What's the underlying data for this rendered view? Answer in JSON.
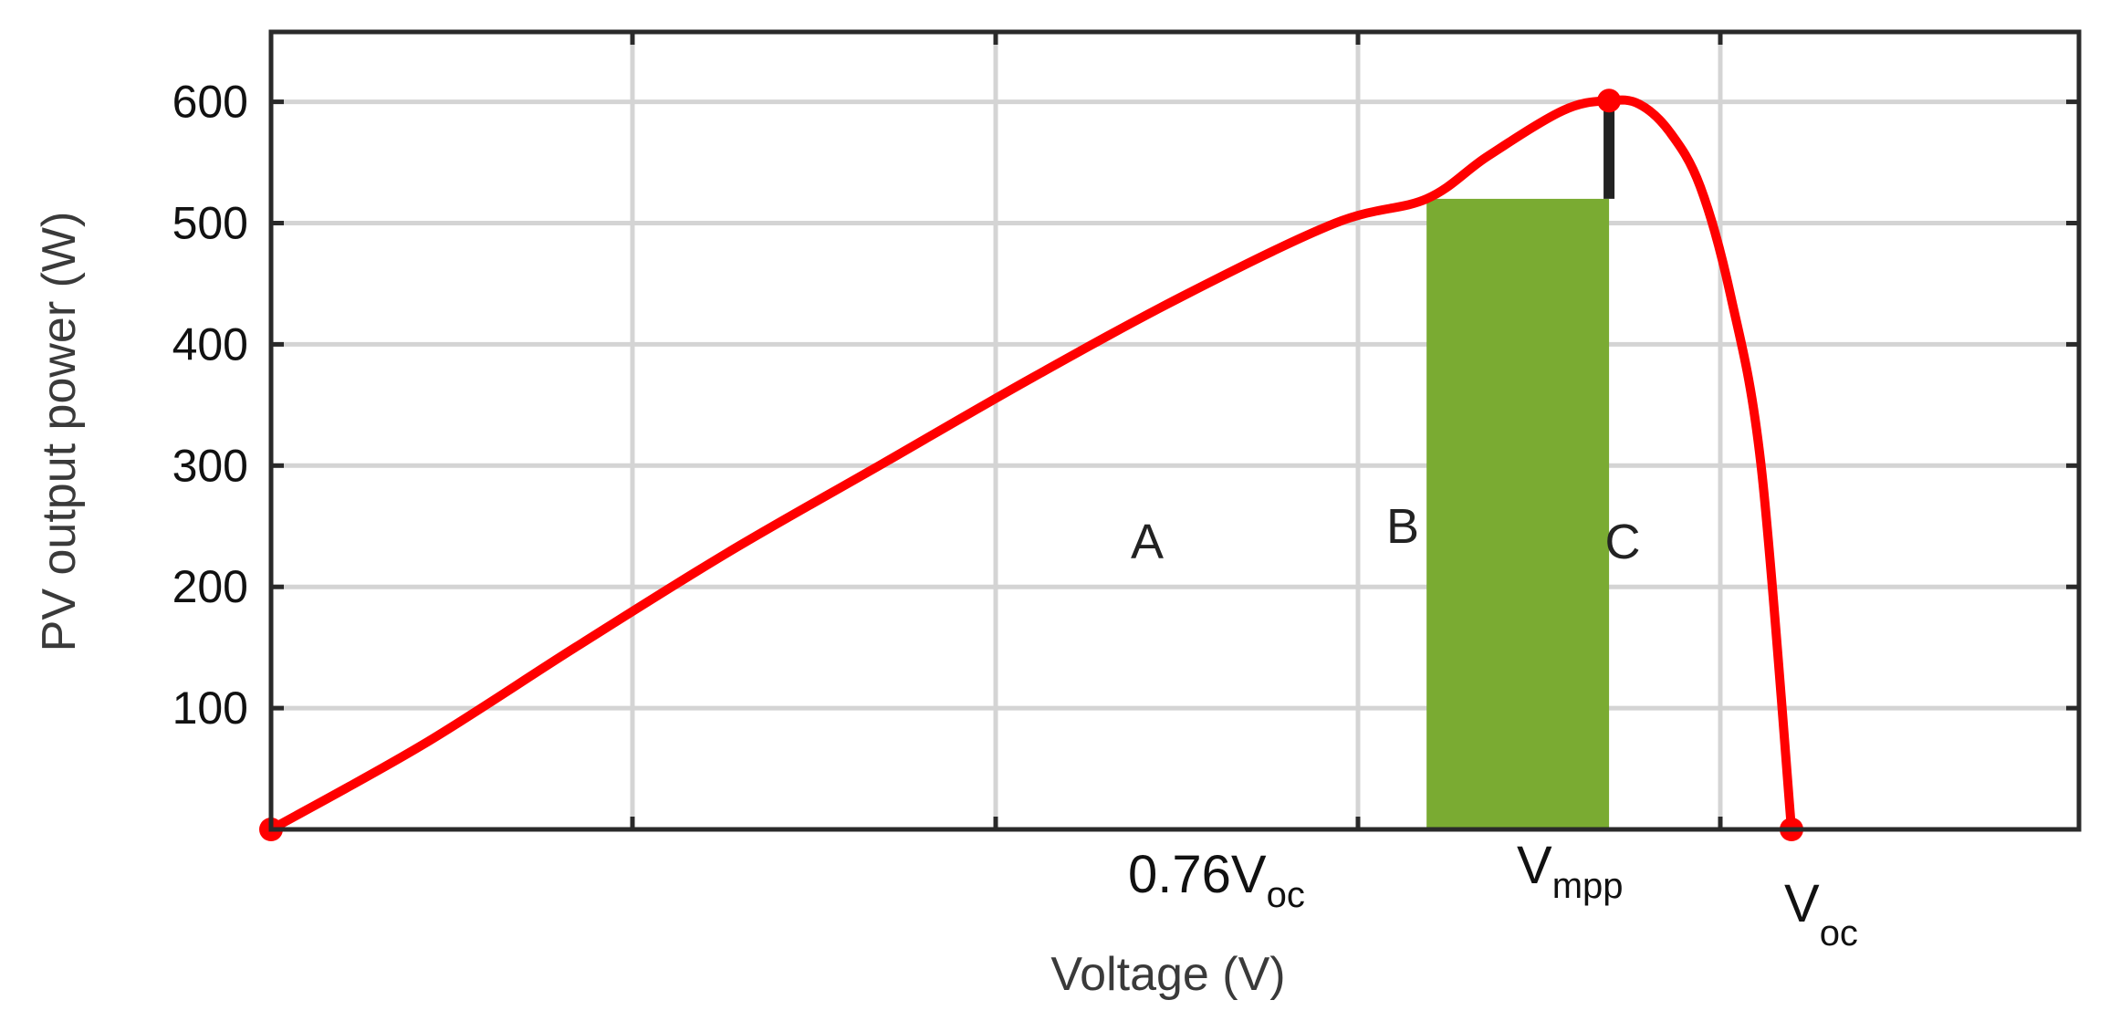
{
  "chart_data": {
    "type": "line",
    "xlabel": "Voltage (V)",
    "ylabel": "PV output power (W)",
    "ylim": [
      0,
      650
    ],
    "y_ticks": [
      100,
      200,
      300,
      400,
      500,
      600
    ],
    "x_range_fraction": [
      0,
      1.25
    ],
    "grid": true,
    "series": [
      {
        "color": "#ff0000",
        "x": [
          0,
          0.1,
          0.2,
          0.3,
          0.4,
          0.5,
          0.6,
          0.7,
          0.76,
          0.8,
          0.85,
          0.88,
          0.9,
          0.92,
          0.94,
          0.96,
          0.98,
          1.0
        ],
        "y": [
          0,
          70,
          150,
          228,
          300,
          372,
          440,
          500,
          520,
          555,
          593,
          601,
          598,
          575,
          530,
          440,
          300,
          0
        ]
      }
    ],
    "points": [
      {
        "x": 0,
        "y": 0
      },
      {
        "x": 0.88,
        "y": 601
      },
      {
        "x": 1.0,
        "y": 0
      }
    ],
    "highlight_region": {
      "x_start": 0.76,
      "x_end": 0.88,
      "y": 520,
      "color": "#7aab32"
    },
    "mpp_line": {
      "x": 0.88,
      "y_from": 520,
      "y_to": 601,
      "color": "#222222"
    },
    "region_labels": [
      "A",
      "B",
      "C"
    ],
    "x_markers": [
      {
        "main": "0.76V",
        "sub": "oc"
      },
      {
        "main": "V",
        "sub": "mpp"
      },
      {
        "main": "V",
        "sub": "oc"
      }
    ]
  }
}
